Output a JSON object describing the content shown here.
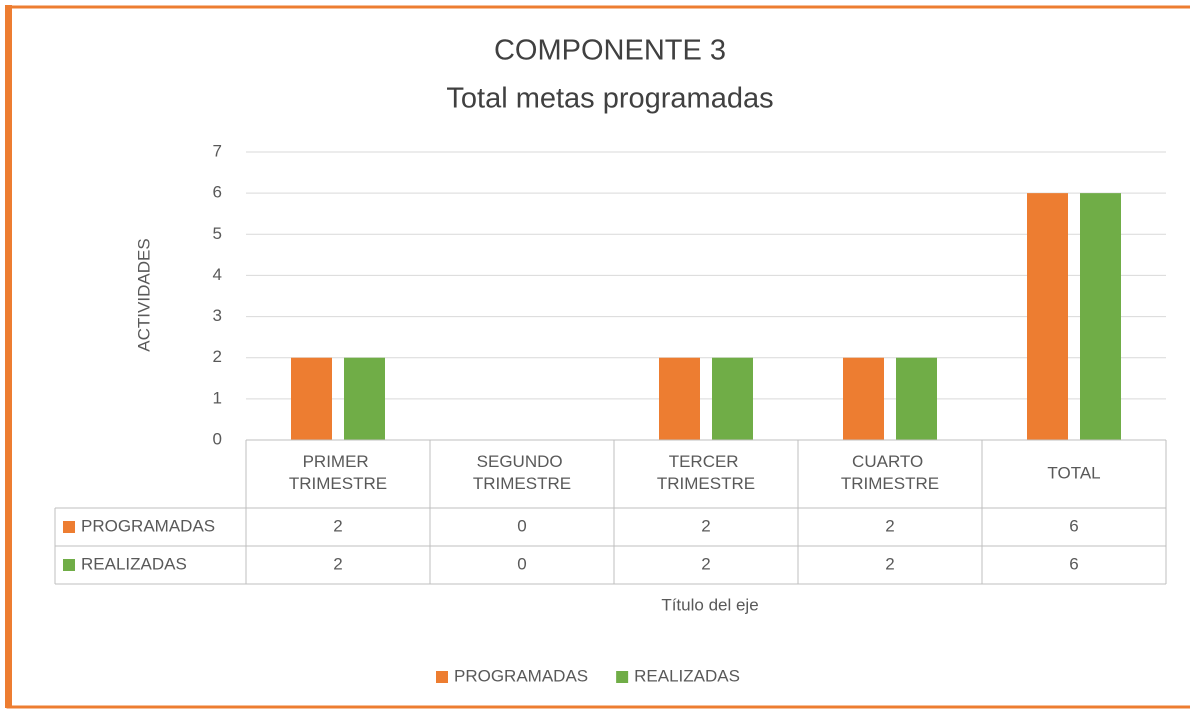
{
  "chart_data": {
    "type": "bar",
    "title": "COMPONENTE 3",
    "subtitle": "Total metas programadas",
    "y_label": "ACTIVIDADES",
    "x_label": "Título del eje",
    "categories": [
      "PRIMER TRIMESTRE",
      "SEGUNDO TRIMESTRE",
      "TERCER TRIMESTRE",
      "CUARTO TRIMESTRE",
      "TOTAL"
    ],
    "series": [
      {
        "name": "PROGRAMADAS",
        "color": "#ed7d31",
        "values": [
          2,
          0,
          2,
          2,
          6
        ]
      },
      {
        "name": "REALIZADAS",
        "color": "#70ad47",
        "values": [
          2,
          0,
          2,
          2,
          6
        ]
      }
    ],
    "ylim": [
      0,
      7
    ],
    "yticks": [
      0,
      1,
      2,
      3,
      4,
      5,
      6,
      7
    ],
    "grid": true,
    "legend": "bottom",
    "data_table": true
  }
}
